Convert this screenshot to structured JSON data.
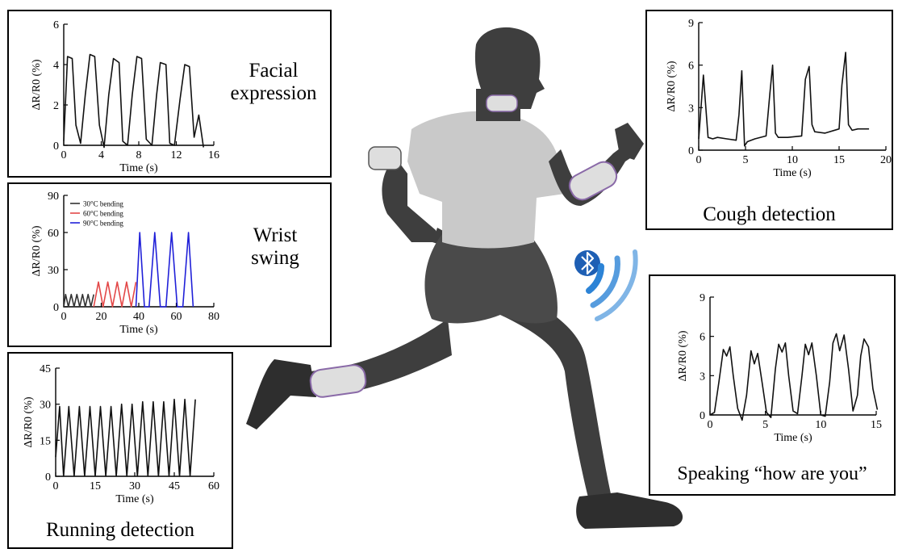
{
  "colors": {
    "trace": "#111111",
    "series_30": "#333333",
    "series_60": "#e34848",
    "series_90": "#2020d8",
    "body_dark": "#3e3e3e",
    "shirt": "#c9c9c9",
    "shorts": "#4a4a4a",
    "sensor_fill": "#dedede",
    "sensor_edge": "#8a6aa8",
    "bluetooth": "#1e5fb4",
    "wave": "#2c83d6"
  },
  "icons": [
    "bluetooth-icon",
    "signal-waves-icon"
  ],
  "chart_data": [
    {
      "id": "facial",
      "type": "line",
      "title": "Facial\nexpression",
      "xlabel": "Time (s)",
      "ylabel": "ΔR/R0 (%)",
      "xlim": [
        0,
        16
      ],
      "ylim": [
        0,
        6
      ],
      "xticks": [
        0,
        4,
        8,
        12,
        16
      ],
      "yticks": [
        0,
        2,
        4,
        6
      ],
      "legend": "",
      "series": [
        {
          "x": [
            0,
            0.4,
            0.9,
            1.3,
            1.8,
            2.3,
            2.8,
            3.3,
            3.8,
            4.3,
            4.8,
            5.3,
            5.9,
            6.3,
            6.8,
            7.3,
            7.8,
            8.3,
            8.8,
            9.4,
            9.9,
            10.3,
            10.9,
            11.3,
            11.8,
            12.4,
            12.9,
            13.4,
            13.9,
            14.4,
            14.9
          ],
          "y": [
            0.2,
            4.4,
            4.3,
            1.0,
            0.1,
            2.5,
            4.5,
            4.4,
            1.0,
            -0.1,
            2.5,
            4.3,
            4.1,
            0.2,
            0.0,
            2.5,
            4.4,
            4.3,
            0.3,
            0.0,
            2.5,
            4.1,
            4.0,
            0.1,
            0.0,
            2.3,
            4.0,
            3.9,
            0.4,
            1.5,
            -0.1
          ]
        }
      ]
    },
    {
      "id": "wrist",
      "type": "line",
      "title": "Wrist\nswing",
      "xlabel": "Time (s)",
      "ylabel": "ΔR/R0 (%)",
      "xlim": [
        0,
        80
      ],
      "ylim": [
        0,
        90
      ],
      "xticks": [
        0,
        20,
        40,
        60,
        80
      ],
      "yticks": [
        0,
        30,
        60,
        90
      ],
      "legend": "top-left",
      "series": [
        {
          "name": "30°C bending",
          "color_key": "series_30",
          "x": [
            0,
            1,
            2.5,
            4,
            5.5,
            7,
            8.5,
            10,
            11.5,
            13,
            14.5,
            16
          ],
          "y": [
            0,
            10,
            0,
            10,
            0,
            10,
            0,
            10,
            0,
            10,
            0,
            10
          ]
        },
        {
          "name": "60°C bending",
          "color_key": "series_60",
          "x": [
            16,
            18.5,
            21,
            23.5,
            26,
            28.5,
            31,
            33.5,
            36,
            38.5
          ],
          "y": [
            0,
            20,
            0,
            20,
            0,
            20,
            0,
            20,
            0,
            20
          ]
        },
        {
          "name": "90°C bending",
          "color_key": "series_90",
          "x": [
            38.5,
            40.5,
            43,
            45.5,
            48.5,
            51.5,
            54.5,
            57.5,
            60.5,
            63.5,
            66.5,
            69
          ],
          "y": [
            0,
            60,
            0,
            0,
            60,
            0,
            0,
            60,
            0,
            0,
            60,
            0
          ]
        }
      ]
    },
    {
      "id": "running",
      "type": "line",
      "title": "Running detection",
      "xlabel": "Time (s)",
      "ylabel": "ΔR/R0 (%)",
      "xlim": [
        0,
        60
      ],
      "ylim": [
        0,
        45
      ],
      "xticks": [
        0,
        15,
        30,
        45,
        60
      ],
      "yticks": [
        0,
        15,
        30,
        45
      ],
      "legend": "",
      "series": [
        {
          "x": [
            0,
            1.5,
            3,
            5,
            7,
            9,
            11,
            13,
            15,
            17,
            19,
            21,
            23,
            25,
            27,
            29,
            31,
            33,
            35,
            37,
            39,
            41,
            43,
            45,
            47,
            49,
            51,
            53
          ],
          "y": [
            8,
            29,
            0,
            29,
            0,
            29,
            0,
            29,
            0,
            29,
            0,
            29,
            0,
            30,
            0,
            30,
            0,
            31,
            0,
            31,
            0,
            31,
            0,
            32,
            0,
            32,
            0,
            32
          ]
        }
      ]
    },
    {
      "id": "cough",
      "type": "line",
      "title": "Cough detection",
      "xlabel": "Time (s)",
      "ylabel": "ΔR/R0 (%)",
      "xlim": [
        0,
        20
      ],
      "ylim": [
        0,
        9
      ],
      "xticks": [
        0,
        5,
        10,
        15,
        20
      ],
      "yticks": [
        0,
        3,
        6,
        9
      ],
      "legend": "",
      "series": [
        {
          "x": [
            0,
            0.5,
            1,
            1.5,
            2,
            3,
            4,
            4.3,
            4.6,
            4.9,
            5.2,
            6,
            7.2,
            7.6,
            7.9,
            8.2,
            8.5,
            9.5,
            11,
            11.4,
            11.8,
            12.1,
            12.4,
            13.5,
            15,
            15.3,
            15.7,
            16,
            16.4,
            17,
            18.2
          ],
          "y": [
            0.8,
            5.3,
            0.9,
            0.8,
            0.9,
            0.8,
            0.7,
            2.5,
            5.6,
            0.3,
            0.6,
            0.8,
            1.0,
            4.0,
            6.0,
            1.2,
            0.9,
            0.9,
            1.0,
            5.0,
            5.9,
            1.8,
            1.3,
            1.2,
            1.5,
            4.6,
            6.9,
            1.8,
            1.4,
            1.5,
            1.5
          ]
        }
      ]
    },
    {
      "id": "speaking",
      "type": "line",
      "title": "Speaking “how are you”",
      "xlabel": "Time (s)",
      "ylabel": "ΔR/R0 (%)",
      "xlim": [
        0,
        15
      ],
      "ylim": [
        0,
        9
      ],
      "xticks": [
        0,
        5,
        10,
        15
      ],
      "yticks": [
        0,
        3,
        6,
        9
      ],
      "legend": "",
      "series": [
        {
          "x": [
            0,
            0.4,
            0.8,
            1.2,
            1.5,
            1.8,
            2.1,
            2.5,
            2.9,
            3.3,
            3.7,
            4.0,
            4.3,
            4.7,
            5.1,
            5.5,
            5.9,
            6.2,
            6.5,
            6.8,
            7.1,
            7.5,
            7.9,
            8.3,
            8.6,
            8.9,
            9.2,
            9.6,
            10.0,
            10.4,
            10.8,
            11.1,
            11.4,
            11.7,
            12.1,
            12.5,
            12.9,
            13.3,
            13.6,
            13.9,
            14.3,
            14.7,
            15.1
          ],
          "y": [
            0.0,
            0.2,
            2.5,
            5.0,
            4.5,
            5.2,
            3.0,
            0.5,
            -0.4,
            1.5,
            4.9,
            3.9,
            4.7,
            2.5,
            0.2,
            -0.2,
            3.5,
            5.4,
            4.8,
            5.5,
            3.0,
            0.3,
            0.1,
            3.0,
            5.4,
            4.6,
            5.5,
            3.0,
            0.0,
            -0.1,
            2.5,
            5.5,
            6.2,
            4.9,
            6.1,
            3.5,
            0.3,
            1.5,
            4.5,
            5.8,
            5.2,
            2.0,
            0.4
          ]
        }
      ]
    }
  ]
}
